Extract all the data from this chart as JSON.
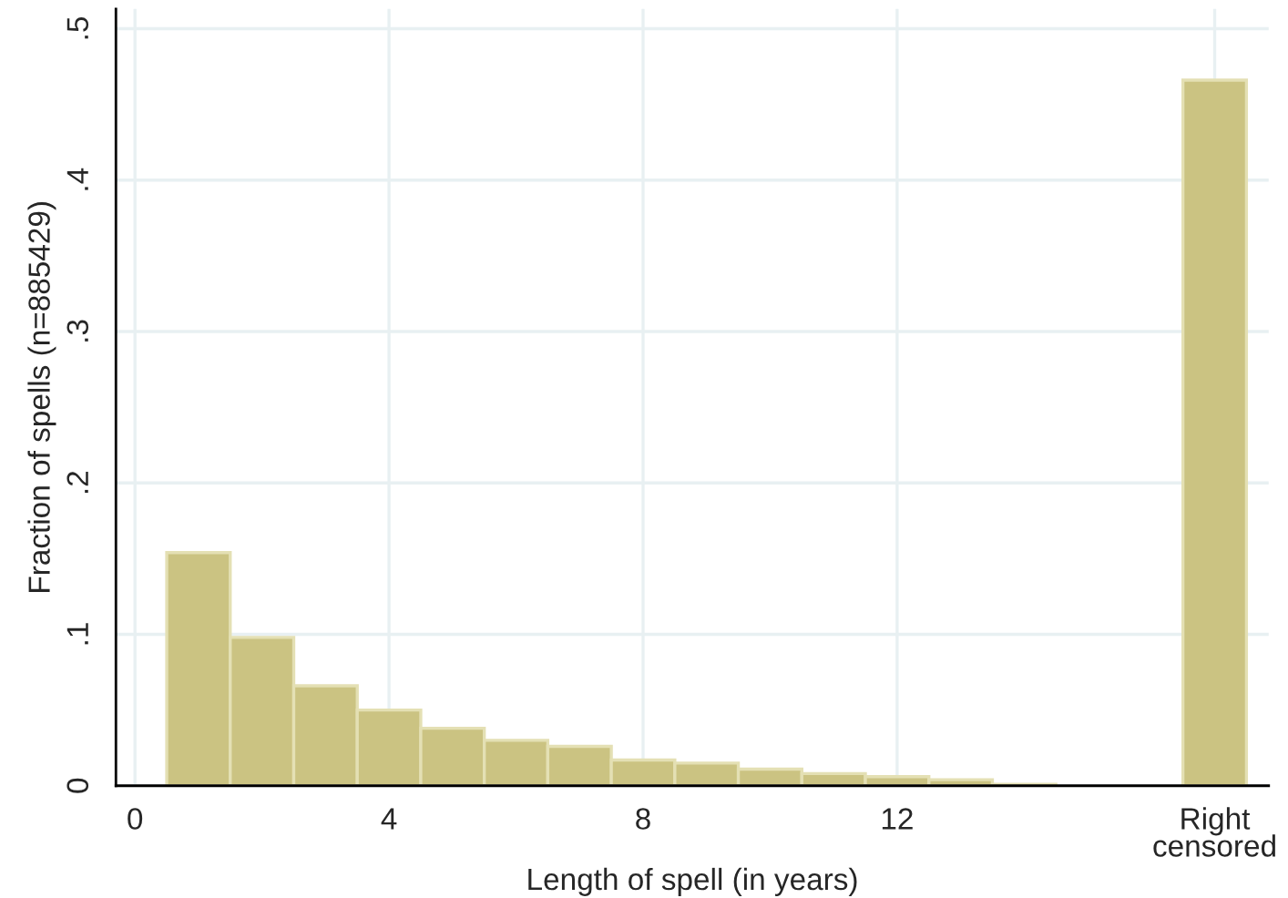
{
  "chart_data": {
    "type": "histogram",
    "xlabel": "Length of spell (in years)",
    "ylabel": "Fraction of spells (n=885429)",
    "bins": [
      0.5,
      1.5,
      2.5,
      3.5,
      4.5,
      5.5,
      6.5,
      7.5,
      8.5,
      9.5,
      10.5,
      11.5,
      12.5,
      13.5,
      14.5,
      15.5,
      16.5,
      17.5
    ],
    "values": [
      0.154,
      0.098,
      0.066,
      0.05,
      0.038,
      0.03,
      0.026,
      0.017,
      0.015,
      0.011,
      0.008,
      0.006,
      0.004,
      0.001,
      0,
      0,
      0.466
    ],
    "color": "#cbc382",
    "xlim": [
      -0.3,
      17.85
    ],
    "ylim": [
      0,
      0.513
    ],
    "xticks": [
      0,
      4,
      8,
      12,
      {
        "value": 17,
        "label": "Right\ncensored"
      }
    ],
    "yticks": [
      {
        "value": 0,
        "label": "0"
      },
      {
        "value": 0.1,
        "label": ".1"
      },
      {
        "value": 0.2,
        "label": ".2"
      },
      {
        "value": 0.3,
        "label": ".3"
      },
      {
        "value": 0.4,
        "label": ".4"
      },
      {
        "value": 0.5,
        "label": ".5"
      }
    ],
    "grid": true
  }
}
